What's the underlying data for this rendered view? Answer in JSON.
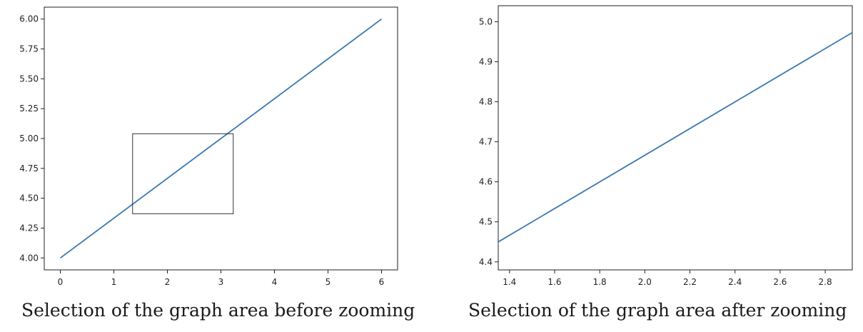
{
  "chart_data": [
    {
      "type": "line",
      "title": "",
      "xlabel": "",
      "ylabel": "",
      "xlim": [
        -0.3,
        6.3
      ],
      "ylim": [
        3.9,
        6.1
      ],
      "xticks": [
        0,
        1,
        2,
        3,
        4,
        5,
        6
      ],
      "xtick_labels": [
        "0",
        "1",
        "2",
        "3",
        "4",
        "5",
        "6"
      ],
      "yticks": [
        4.0,
        4.25,
        4.5,
        4.75,
        5.0,
        5.25,
        5.5,
        5.75,
        6.0
      ],
      "ytick_labels": [
        "4.00",
        "4.25",
        "4.50",
        "4.75",
        "5.00",
        "5.25",
        "5.50",
        "5.75",
        "6.00"
      ],
      "grid": false,
      "series": [
        {
          "x": [
            0,
            6
          ],
          "y": [
            4.0,
            6.0
          ],
          "color": "#3b78b0"
        }
      ],
      "selection_box": {
        "x": [
          1.35,
          3.23
        ],
        "y": [
          4.37,
          5.04
        ]
      },
      "caption": "Selection of the graph area before zooming"
    },
    {
      "type": "line",
      "title": "",
      "xlabel": "",
      "ylabel": "",
      "xlim": [
        1.35,
        2.92
      ],
      "ylim": [
        4.38,
        5.04
      ],
      "xticks": [
        1.4,
        1.6,
        1.8,
        2.0,
        2.2,
        2.4,
        2.6,
        2.8
      ],
      "xtick_labels": [
        "1.4",
        "1.6",
        "1.8",
        "2.0",
        "2.2",
        "2.4",
        "2.6",
        "2.8"
      ],
      "yticks": [
        4.4,
        4.5,
        4.6,
        4.7,
        4.8,
        4.9,
        5.0
      ],
      "ytick_labels": [
        "4.4",
        "4.5",
        "4.6",
        "4.7",
        "4.8",
        "4.9",
        "5.0"
      ],
      "grid": false,
      "series": [
        {
          "x": [
            1.35,
            2.92
          ],
          "y": [
            4.45,
            4.973
          ],
          "color": "#3b78b0"
        }
      ],
      "caption": "Selection of the graph area after zooming"
    }
  ]
}
